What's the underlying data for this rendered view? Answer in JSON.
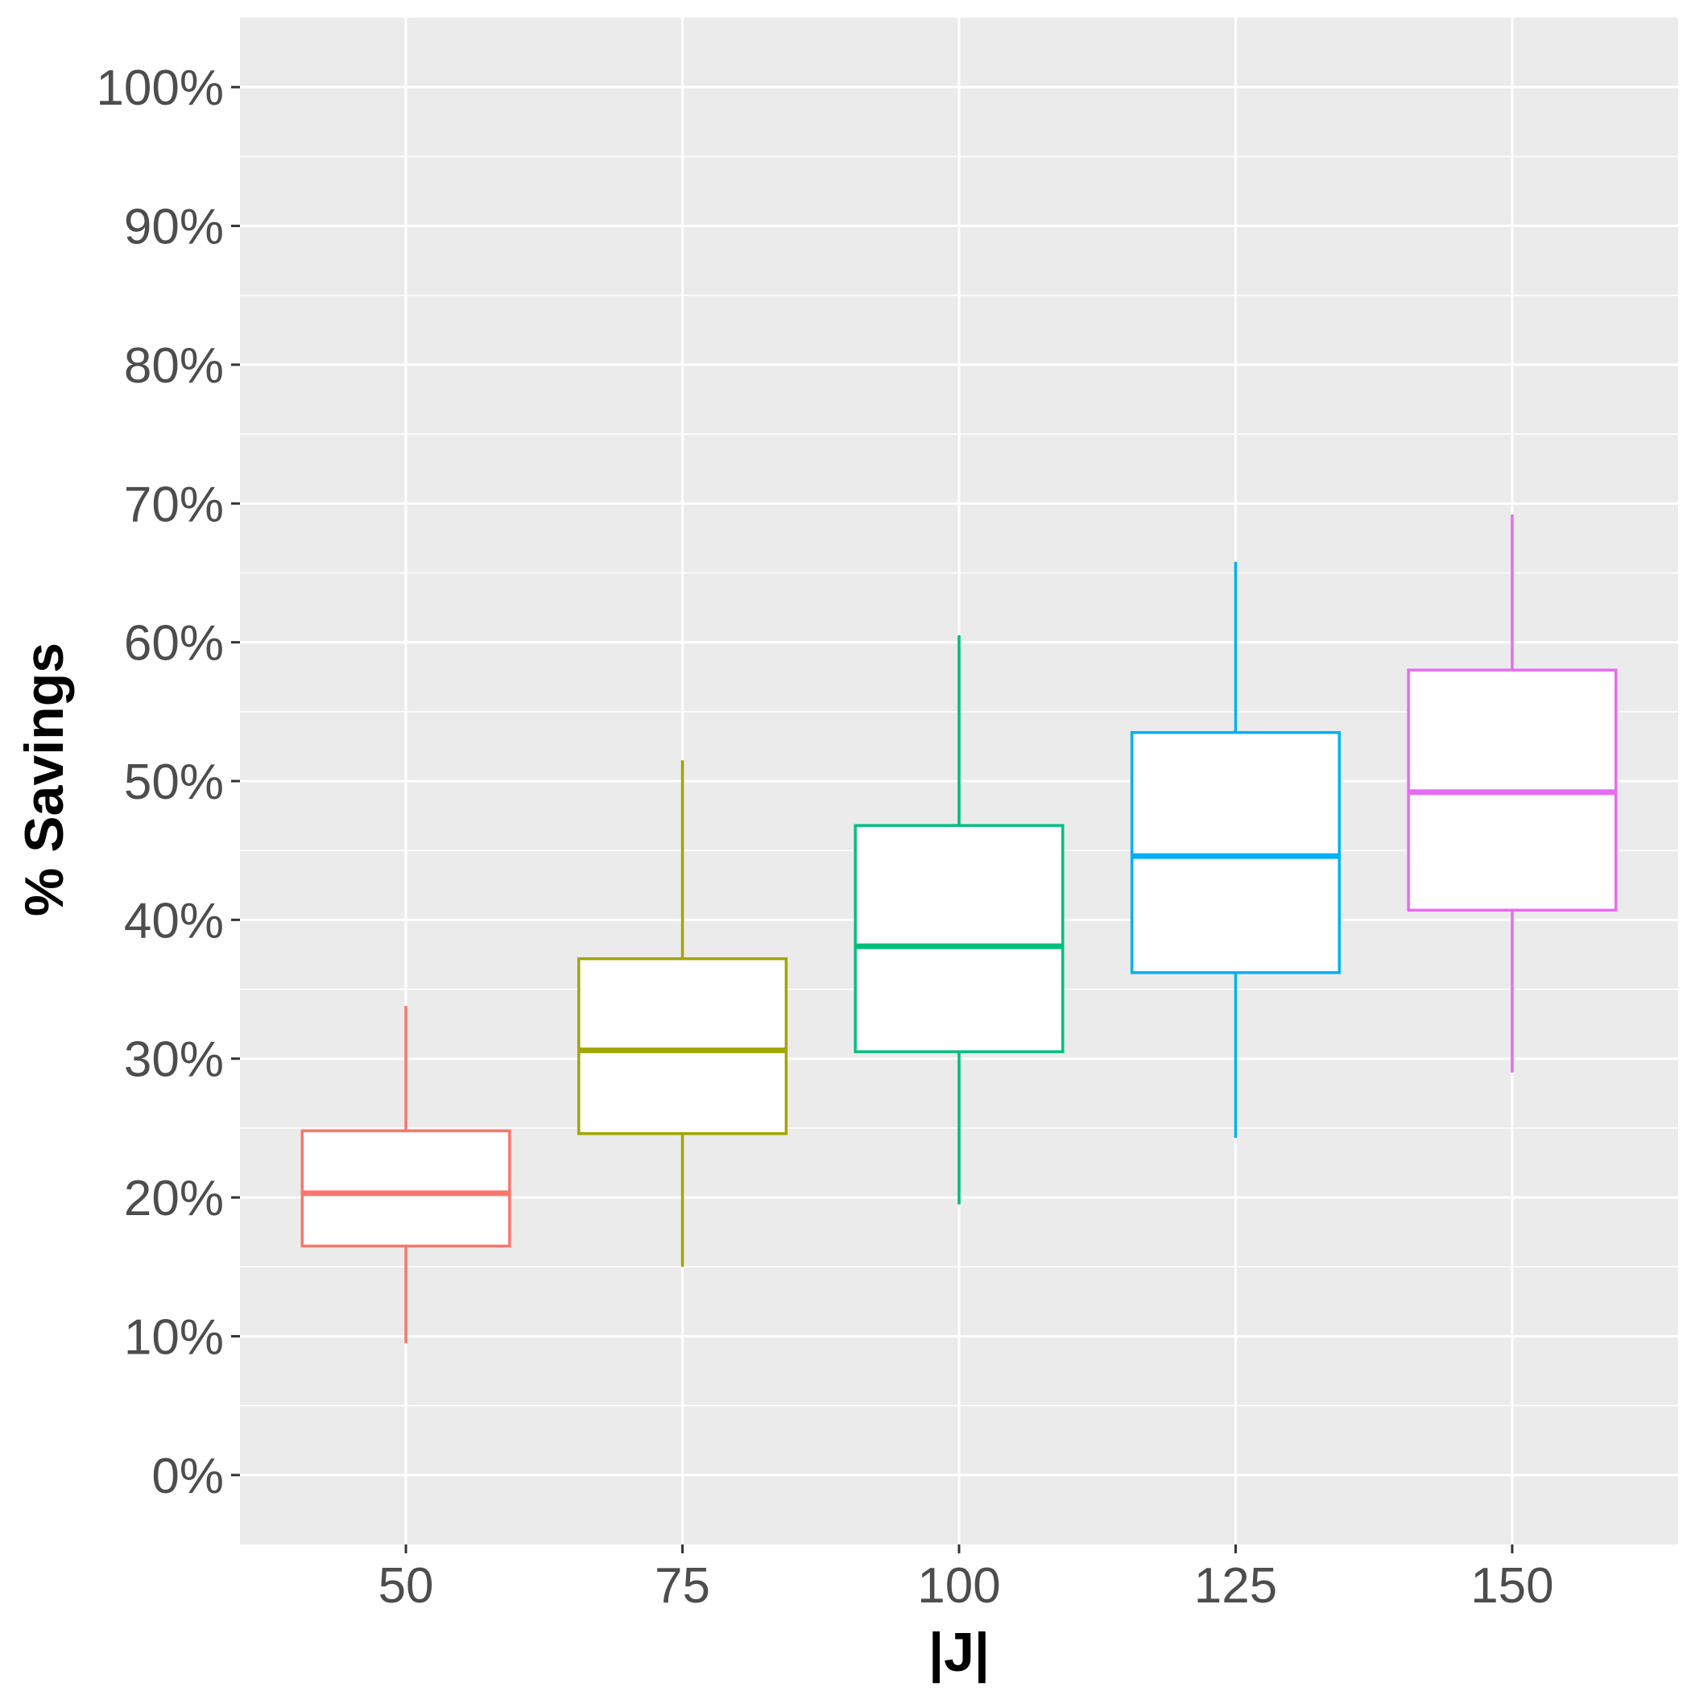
{
  "chart_data": {
    "type": "boxplot",
    "title": "",
    "xlabel": "|J|",
    "ylabel": "% Savings",
    "ylim": [
      -0.05,
      1.05
    ],
    "y_ticks": [
      0,
      0.1,
      0.2,
      0.3,
      0.4,
      0.5,
      0.6,
      0.7,
      0.8,
      0.9,
      1.0
    ],
    "y_tick_labels": [
      "0%",
      "10%",
      "20%",
      "30%",
      "40%",
      "50%",
      "60%",
      "70%",
      "80%",
      "90%",
      "100%"
    ],
    "grid": true,
    "legend": "none",
    "categories": [
      "50",
      "75",
      "100",
      "125",
      "150"
    ],
    "series": [
      {
        "name": "50",
        "color": "#F8766D",
        "whisker_low": 0.095,
        "q1": 0.165,
        "median": 0.203,
        "q3": 0.248,
        "whisker_high": 0.338
      },
      {
        "name": "75",
        "color": "#A3A500",
        "whisker_low": 0.15,
        "q1": 0.246,
        "median": 0.306,
        "q3": 0.372,
        "whisker_high": 0.515
      },
      {
        "name": "100",
        "color": "#00BF7D",
        "whisker_low": 0.195,
        "q1": 0.305,
        "median": 0.381,
        "q3": 0.468,
        "whisker_high": 0.605
      },
      {
        "name": "125",
        "color": "#00B0F6",
        "whisker_low": 0.243,
        "q1": 0.362,
        "median": 0.446,
        "q3": 0.535,
        "whisker_high": 0.658
      },
      {
        "name": "150",
        "color": "#E76BF3",
        "whisker_low": 0.29,
        "q1": 0.407,
        "median": 0.492,
        "q3": 0.58,
        "whisker_high": 0.692
      }
    ]
  }
}
